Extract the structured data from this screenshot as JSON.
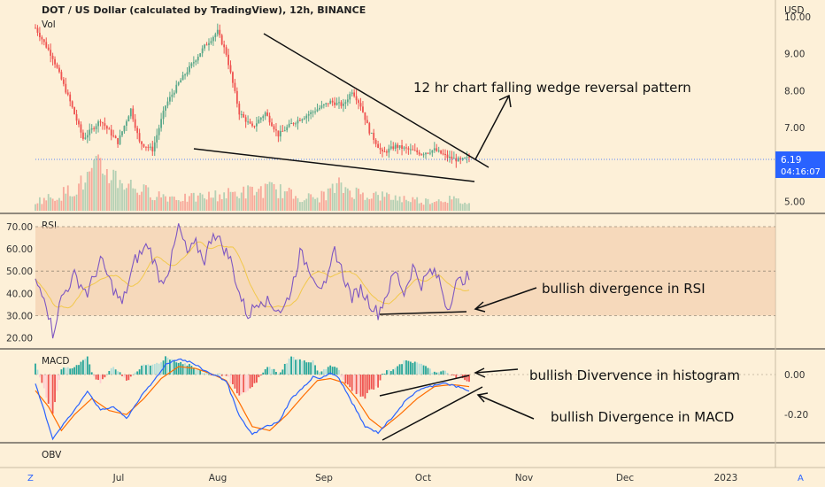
{
  "header": {
    "title": "DOT / US Dollar (calculated by TradingView), 12h, BINANCE",
    "currency": "USD",
    "vol_label": "Vol"
  },
  "price_badge": {
    "price": "6.19",
    "countdown": "04:16:07",
    "color": "#2962ff"
  },
  "bottom_bar": {
    "left_btn": "Z",
    "right_btn": "A"
  },
  "annotations": {
    "wedge": "12 hr chart falling wedge reversal pattern",
    "rsi": "bullish divergence in RSI",
    "histogram": "bullish Divervence in histogram",
    "macd": "bullish Divergence in MACD"
  },
  "colors": {
    "background": "#fdf0d8",
    "up": "#5aa88a",
    "down": "#ef5350",
    "rsi_line": "#7e57c2",
    "rsi_ma": "#f2c84b",
    "rsi_band": "#f2c9a8",
    "macd_line": "#2962ff",
    "signal_line": "#ff6d00",
    "hist_up_strong": "#26a69a",
    "hist_up_weak": "#b2dfdb",
    "hist_down_strong": "#ef5350",
    "hist_down_weak": "#ffcdd2"
  },
  "chart_data": [
    {
      "type": "candlestick",
      "panel": "price",
      "x_ticks": [
        "Jul",
        "Aug",
        "Sep",
        "Oct",
        "Nov",
        "Dec",
        "2023"
      ],
      "y_ticks": [
        5.0,
        6.0,
        7.0,
        8.0,
        9.0,
        10.0
      ],
      "ylim": [
        5.0,
        10.0
      ],
      "last_price": 6.19,
      "price_anchors": [
        [
          0,
          9.7
        ],
        [
          8,
          8.9
        ],
        [
          16,
          7.7
        ],
        [
          22,
          6.7
        ],
        [
          30,
          7.2
        ],
        [
          38,
          6.6
        ],
        [
          44,
          7.5
        ],
        [
          48,
          6.6
        ],
        [
          54,
          6.4
        ],
        [
          60,
          7.6
        ],
        [
          66,
          8.2
        ],
        [
          72,
          8.7
        ],
        [
          78,
          9.2
        ],
        [
          84,
          9.6
        ],
        [
          88,
          9.0
        ],
        [
          94,
          7.4
        ],
        [
          100,
          7.0
        ],
        [
          106,
          7.4
        ],
        [
          112,
          6.8
        ],
        [
          118,
          7.1
        ],
        [
          124,
          7.3
        ],
        [
          130,
          7.5
        ],
        [
          136,
          7.7
        ],
        [
          142,
          7.6
        ],
        [
          146,
          8.0
        ],
        [
          150,
          7.6
        ],
        [
          154,
          6.9
        ],
        [
          160,
          6.3
        ],
        [
          166,
          6.5
        ],
        [
          172,
          6.4
        ],
        [
          178,
          6.3
        ],
        [
          184,
          6.4
        ],
        [
          190,
          6.2
        ],
        [
          196,
          6.1
        ],
        [
          200,
          6.19
        ]
      ],
      "volume_profile": [
        0.2,
        0.3,
        0.5,
        0.9,
        0.6,
        0.4,
        0.3,
        0.25,
        0.3,
        0.35,
        0.4,
        0.45,
        0.3,
        0.25,
        0.5,
        0.35,
        0.3,
        0.25,
        0.2,
        0.25,
        0.15
      ]
    },
    {
      "type": "line",
      "panel": "RSI",
      "ylim": [
        15,
        75
      ],
      "y_ticks": [
        20.0,
        30.0,
        40.0,
        50.0,
        60.0,
        70.0
      ],
      "band": [
        30,
        70
      ],
      "rsi_anchors": [
        [
          0,
          45
        ],
        [
          4,
          40
        ],
        [
          8,
          22
        ],
        [
          12,
          38
        ],
        [
          18,
          48
        ],
        [
          24,
          40
        ],
        [
          30,
          55
        ],
        [
          36,
          42
        ],
        [
          40,
          35
        ],
        [
          46,
          55
        ],
        [
          52,
          62
        ],
        [
          58,
          45
        ],
        [
          62,
          52
        ],
        [
          66,
          70
        ],
        [
          70,
          58
        ],
        [
          74,
          62
        ],
        [
          78,
          55
        ],
        [
          82,
          68
        ],
        [
          86,
          62
        ],
        [
          90,
          55
        ],
        [
          94,
          40
        ],
        [
          98,
          30
        ],
        [
          104,
          38
        ],
        [
          110,
          34
        ],
        [
          114,
          32
        ],
        [
          118,
          42
        ],
        [
          122,
          58
        ],
        [
          126,
          52
        ],
        [
          130,
          45
        ],
        [
          134,
          42
        ],
        [
          138,
          60
        ],
        [
          142,
          48
        ],
        [
          146,
          38
        ],
        [
          150,
          42
        ],
        [
          154,
          36
        ],
        [
          158,
          31
        ],
        [
          162,
          40
        ],
        [
          166,
          50
        ],
        [
          170,
          40
        ],
        [
          174,
          52
        ],
        [
          178,
          44
        ],
        [
          182,
          50
        ],
        [
          186,
          47
        ],
        [
          190,
          33
        ],
        [
          194,
          44
        ],
        [
          198,
          47
        ]
      ]
    },
    {
      "type": "line",
      "panel": "MACD",
      "ylim": [
        -0.33,
        0.1
      ],
      "y_ticks": [
        0.0,
        -0.2
      ],
      "macd_anchors": [
        [
          0,
          -0.05
        ],
        [
          4,
          -0.18
        ],
        [
          8,
          -0.32
        ],
        [
          12,
          -0.26
        ],
        [
          18,
          -0.18
        ],
        [
          24,
          -0.08
        ],
        [
          30,
          -0.18
        ],
        [
          36,
          -0.16
        ],
        [
          42,
          -0.22
        ],
        [
          48,
          -0.12
        ],
        [
          54,
          -0.04
        ],
        [
          60,
          0.05
        ],
        [
          66,
          0.08
        ],
        [
          72,
          0.06
        ],
        [
          78,
          0.02
        ],
        [
          84,
          -0.01
        ],
        [
          88,
          -0.03
        ],
        [
          94,
          -0.21
        ],
        [
          100,
          -0.3
        ],
        [
          106,
          -0.26
        ],
        [
          112,
          -0.24
        ],
        [
          118,
          -0.12
        ],
        [
          124,
          -0.06
        ],
        [
          128,
          -0.01
        ],
        [
          132,
          -0.02
        ],
        [
          136,
          0.01
        ],
        [
          140,
          -0.02
        ],
        [
          146,
          -0.14
        ],
        [
          152,
          -0.26
        ],
        [
          158,
          -0.29
        ],
        [
          164,
          -0.22
        ],
        [
          170,
          -0.14
        ],
        [
          176,
          -0.08
        ],
        [
          182,
          -0.06
        ],
        [
          188,
          -0.04
        ],
        [
          194,
          -0.06
        ],
        [
          200,
          -0.08
        ]
      ],
      "signal_anchors": [
        [
          0,
          -0.08
        ],
        [
          6,
          -0.16
        ],
        [
          12,
          -0.28
        ],
        [
          18,
          -0.2
        ],
        [
          26,
          -0.12
        ],
        [
          34,
          -0.18
        ],
        [
          42,
          -0.2
        ],
        [
          50,
          -0.12
        ],
        [
          58,
          -0.02
        ],
        [
          66,
          0.04
        ],
        [
          74,
          0.03
        ],
        [
          82,
          0.0
        ],
        [
          88,
          -0.03
        ],
        [
          94,
          -0.14
        ],
        [
          100,
          -0.26
        ],
        [
          108,
          -0.28
        ],
        [
          116,
          -0.2
        ],
        [
          124,
          -0.1
        ],
        [
          130,
          -0.03
        ],
        [
          136,
          -0.02
        ],
        [
          142,
          -0.04
        ],
        [
          148,
          -0.12
        ],
        [
          154,
          -0.22
        ],
        [
          160,
          -0.27
        ],
        [
          168,
          -0.2
        ],
        [
          176,
          -0.12
        ],
        [
          184,
          -0.06
        ],
        [
          192,
          -0.05
        ],
        [
          200,
          -0.06
        ]
      ]
    },
    {
      "type": "panel_label",
      "panel": "OBV"
    }
  ]
}
